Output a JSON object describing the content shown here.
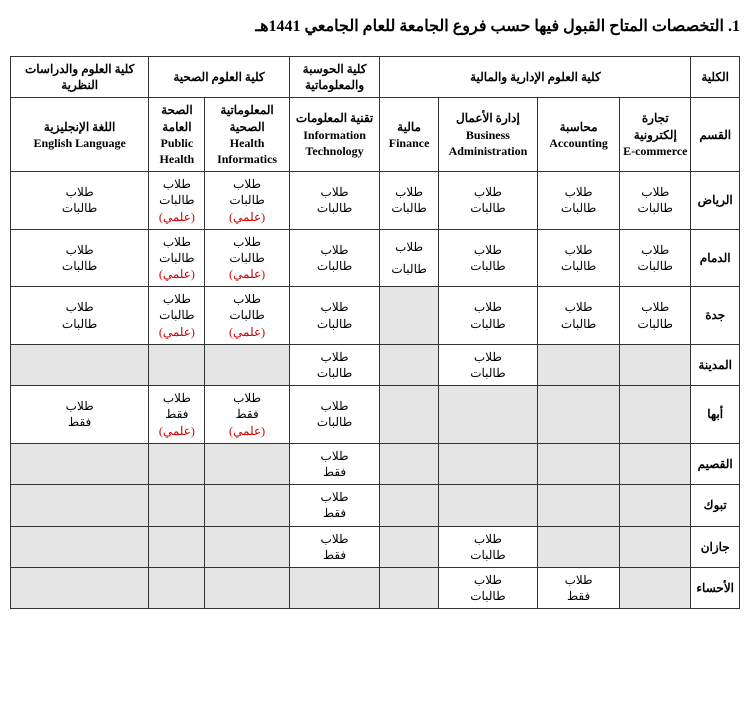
{
  "title": "1.   التخصصات المتاح القبول فيها حسب فروع الجامعة للعام الجامعي 1441هـ",
  "columns": {
    "label_head": "الكلية",
    "admin_fin": "كلية العلوم الإدارية والمالية",
    "comp_info": "كلية الحوسبة والمعلوماتية",
    "health": "كلية العلوم الصحية",
    "theo": "كلية العلوم والدراسات النظرية",
    "dept_label": "القسم",
    "ecom_ar": "تجارة إلكترونية",
    "ecom_en": "E-commerce",
    "acc_ar": "محاسبة",
    "acc_en": "Accounting",
    "bus_ar": "إدارة الأعمال",
    "bus_en": "Business Administration",
    "fin_ar": "مالية",
    "fin_en": "Finance",
    "it_ar": "تقنية المعلومات",
    "it_en": "Information Technology",
    "hi_ar": "المعلوماتية الصحية",
    "hi_en": "Health Informatics",
    "ph_ar": "الصحة العامة",
    "ph_en": "Public Health",
    "eng_ar": "اللغة الإنجليزية",
    "eng_en": "English Language"
  },
  "words": {
    "male": "طلاب",
    "female": "طالبات",
    "only": "فقط",
    "sci": "(علمي)"
  },
  "colors": {
    "text": "#000000",
    "border": "#333333",
    "shaded": "#e5e5e5",
    "red": "#cc0000",
    "bg": "#ffffff"
  },
  "rows": [
    {
      "label": "الرياض",
      "cells": [
        {
          "k": "mf"
        },
        {
          "k": "mf"
        },
        {
          "k": "mf"
        },
        {
          "k": "mf"
        },
        {
          "k": "mf"
        },
        {
          "k": "mf_sci"
        },
        {
          "k": "mf_sci"
        },
        {
          "k": "mf"
        }
      ]
    },
    {
      "label": "الدمام",
      "cells": [
        {
          "k": "mf"
        },
        {
          "k": "mf"
        },
        {
          "k": "mf"
        },
        {
          "k": "m_f_split"
        },
        {
          "k": "mf"
        },
        {
          "k": "mf_sci"
        },
        {
          "k": "mf_sci"
        },
        {
          "k": "mf"
        }
      ]
    },
    {
      "label": "جدة",
      "cells": [
        {
          "k": "mf"
        },
        {
          "k": "mf"
        },
        {
          "k": "mf"
        },
        {
          "k": "empty_sh"
        },
        {
          "k": "mf"
        },
        {
          "k": "mf_sci"
        },
        {
          "k": "mf_sci"
        },
        {
          "k": "mf"
        }
      ]
    },
    {
      "label": "المدينة",
      "cells": [
        {
          "k": "empty_sh"
        },
        {
          "k": "empty_sh"
        },
        {
          "k": "mf"
        },
        {
          "k": "empty_sh"
        },
        {
          "k": "mf"
        },
        {
          "k": "empty_sh"
        },
        {
          "k": "empty_sh"
        },
        {
          "k": "empty_sh"
        }
      ]
    },
    {
      "label": "أبها",
      "cells": [
        {
          "k": "empty_sh"
        },
        {
          "k": "empty_sh"
        },
        {
          "k": "empty_sh"
        },
        {
          "k": "empty_sh"
        },
        {
          "k": "mf"
        },
        {
          "k": "m_only_sci"
        },
        {
          "k": "m_only_sci"
        },
        {
          "k": "m_only"
        }
      ]
    },
    {
      "label": "القصيم",
      "cells": [
        {
          "k": "empty_sh"
        },
        {
          "k": "empty_sh"
        },
        {
          "k": "empty_sh"
        },
        {
          "k": "empty_sh"
        },
        {
          "k": "m_only"
        },
        {
          "k": "empty_sh"
        },
        {
          "k": "empty_sh"
        },
        {
          "k": "empty_sh"
        }
      ]
    },
    {
      "label": "تبوك",
      "cells": [
        {
          "k": "empty_sh"
        },
        {
          "k": "empty_sh"
        },
        {
          "k": "empty_sh"
        },
        {
          "k": "empty_sh"
        },
        {
          "k": "m_only"
        },
        {
          "k": "empty_sh"
        },
        {
          "k": "empty_sh"
        },
        {
          "k": "empty_sh"
        }
      ]
    },
    {
      "label": "جازان",
      "cells": [
        {
          "k": "empty_sh"
        },
        {
          "k": "empty_sh"
        },
        {
          "k": "mf"
        },
        {
          "k": "empty_sh"
        },
        {
          "k": "m_only"
        },
        {
          "k": "empty_sh"
        },
        {
          "k": "empty_sh"
        },
        {
          "k": "empty_sh"
        }
      ]
    },
    {
      "label": "الأحساء",
      "cells": [
        {
          "k": "empty_sh"
        },
        {
          "k": "m_only"
        },
        {
          "k": "mf"
        },
        {
          "k": "empty_sh"
        },
        {
          "k": "empty_sh"
        },
        {
          "k": "empty_sh"
        },
        {
          "k": "empty_sh"
        },
        {
          "k": "empty_sh"
        }
      ]
    }
  ]
}
